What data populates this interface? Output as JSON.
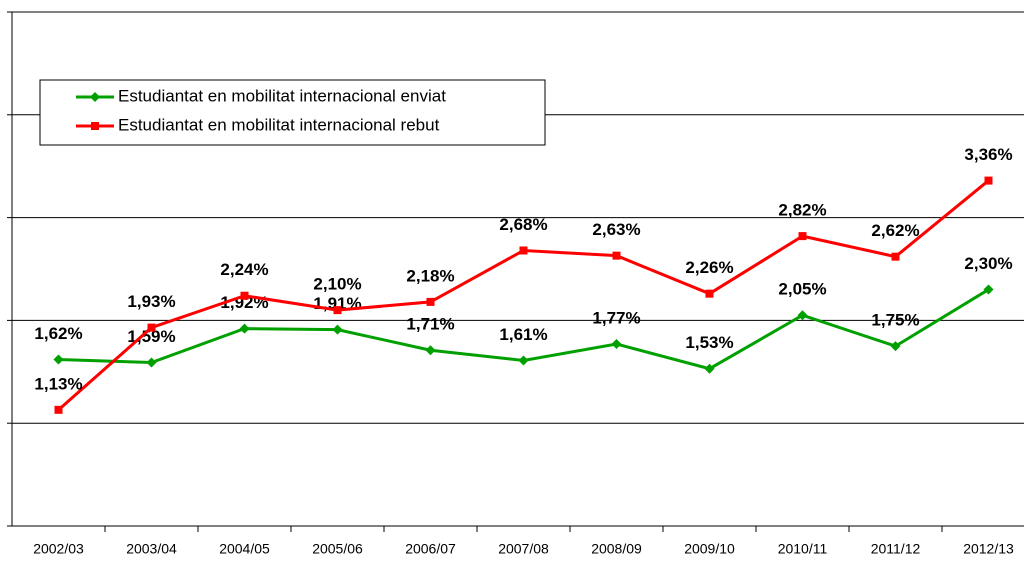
{
  "chart_data": {
    "type": "line",
    "categories": [
      "2002/03",
      "2003/04",
      "2004/05",
      "2005/06",
      "2006/07",
      "2007/08",
      "2008/09",
      "2009/10",
      "2010/11",
      "2011/12",
      "2012/13"
    ],
    "series": [
      {
        "name": "Estudiantat en mobilitat internacional enviat",
        "color": "#00a000",
        "marker": "diamond",
        "values": [
          1.62,
          1.59,
          1.92,
          1.91,
          1.71,
          1.61,
          1.77,
          1.53,
          2.05,
          1.75,
          2.3
        ],
        "value_labels": [
          "1,62%",
          "1,59%",
          "1,92%",
          "1,91%",
          "1,71%",
          "1,61%",
          "1,77%",
          "1,53%",
          "2,05%",
          "1,75%",
          "2,30%"
        ]
      },
      {
        "name": "Estudiantat en mobilitat internacional rebut",
        "color": "#ff0000",
        "marker": "square",
        "values": [
          1.13,
          1.93,
          2.24,
          2.1,
          2.18,
          2.68,
          2.63,
          2.26,
          2.82,
          2.62,
          3.36
        ],
        "value_labels": [
          "1,13%",
          "1,93%",
          "2,24%",
          "2,10%",
          "2,18%",
          "2,68%",
          "2,63%",
          "2,26%",
          "2,82%",
          "2,62%",
          "3,36%"
        ]
      }
    ],
    "ylim": [
      0,
      5
    ],
    "yticks": [
      0,
      1,
      2,
      3,
      4,
      5
    ],
    "grid": true,
    "legend": "top-left"
  }
}
